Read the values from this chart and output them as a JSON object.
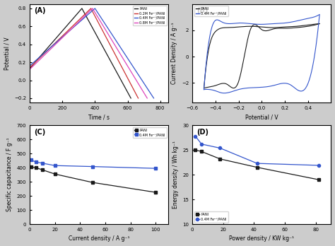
{
  "panel_A": {
    "title": "(A)",
    "xlabel": "Time / s",
    "ylabel": "Potential / V",
    "xlim": [
      0,
      850
    ],
    "ylim": [
      -0.25,
      0.85
    ],
    "xticks": [
      0,
      200,
      400,
      600,
      800
    ],
    "yticks": [
      -0.2,
      0.0,
      0.2,
      0.4,
      0.6,
      0.8
    ],
    "series": {
      "PANI": {
        "color": "#1a1a1a",
        "t": [
          0,
          320,
          580,
          620
        ],
        "v": [
          0.13,
          0.8,
          0.0,
          -0.2
        ]
      },
      "0.2M": {
        "color": "#cc3333",
        "t": [
          0,
          375,
          630,
          665
        ],
        "v": [
          0.14,
          0.8,
          0.0,
          -0.2
        ]
      },
      "0.4M": {
        "color": "#3355cc",
        "t": [
          0,
          400,
          730,
          760
        ],
        "v": [
          0.16,
          0.8,
          0.0,
          -0.2
        ]
      },
      "0.8M": {
        "color": "#dd44bb",
        "t": [
          0,
          385,
          695,
          720
        ],
        "v": [
          0.12,
          0.8,
          0.0,
          -0.2
        ]
      }
    },
    "legend": [
      "PANI",
      "0.2M Fe²⁺/PANI",
      "0.4M Fe²⁺/PANI",
      "0.8M Fe²⁺/PANI"
    ],
    "legend_colors": [
      "#1a1a1a",
      "#cc3333",
      "#3355cc",
      "#dd44bb"
    ]
  },
  "panel_B": {
    "title": "(B)",
    "xlabel": "Potential / V",
    "ylabel": "Current Density / A g⁻¹",
    "xlim": [
      -0.6,
      0.6
    ],
    "ylim": [
      -3.5,
      4.0
    ],
    "xticks": [
      -0.6,
      -0.4,
      -0.2,
      0.0,
      0.2,
      0.4
    ],
    "yticks": [
      -2,
      0,
      2
    ],
    "legend": [
      "PANI",
      "0.4M Fe²⁺/PANI"
    ],
    "legend_colors": [
      "#1a1a1a",
      "#3355cc"
    ]
  },
  "panel_C": {
    "title": "(C)",
    "xlabel": "Current density / A g⁻¹",
    "ylabel": "Specific capacitance / F g⁻¹",
    "xlim": [
      0,
      110
    ],
    "ylim": [
      0,
      700
    ],
    "xticks": [
      0,
      20,
      40,
      60,
      80,
      100
    ],
    "yticks": [
      0,
      100,
      200,
      300,
      400,
      500,
      600,
      700
    ],
    "PANI_x": [
      1,
      5,
      10,
      20,
      50,
      100
    ],
    "PANI_y": [
      405,
      400,
      385,
      355,
      295,
      225
    ],
    "Fe_x": [
      1,
      5,
      10,
      20,
      50,
      100
    ],
    "Fe_y": [
      455,
      440,
      432,
      415,
      408,
      395
    ],
    "PANI_color": "#1a1a1a",
    "Fe_color": "#3355cc",
    "legend": [
      "PANI",
      "0.4M Fe²⁺/PANI"
    ],
    "legend_colors": [
      "#1a1a1a",
      "#3355cc"
    ]
  },
  "panel_D": {
    "title": "(D)",
    "xlabel": "Power density / KW kg⁻¹",
    "ylabel": "Energy density / Wh kg⁻¹",
    "xlim": [
      0,
      90
    ],
    "ylim": [
      10,
      30
    ],
    "xticks": [
      0,
      20,
      40,
      60,
      80
    ],
    "yticks": [
      10,
      15,
      20,
      25,
      30
    ],
    "PANI_x": [
      2,
      6,
      18,
      42,
      82
    ],
    "PANI_y": [
      25.0,
      24.7,
      23.2,
      21.5,
      19.0
    ],
    "Fe_x": [
      2,
      6,
      18,
      42,
      82
    ],
    "Fe_y": [
      27.8,
      26.2,
      25.4,
      22.3,
      21.9
    ],
    "PANI_color": "#1a1a1a",
    "Fe_color": "#3355cc",
    "legend": [
      "PANI",
      "0.4M Fe²⁺/PANI"
    ],
    "legend_colors": [
      "#1a1a1a",
      "#3355cc"
    ]
  },
  "fig_facecolor": "#cccccc",
  "ax_facecolor": "#ffffff"
}
